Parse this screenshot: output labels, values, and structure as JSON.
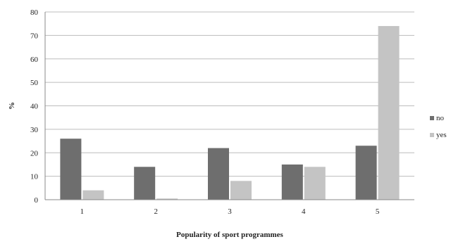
{
  "chart_data": {
    "type": "bar",
    "title": "",
    "xlabel": "Popularity of sport programmes",
    "ylabel": "%",
    "categories": [
      "1",
      "2",
      "3",
      "4",
      "5"
    ],
    "series": [
      {
        "name": "no",
        "values": [
          26,
          14,
          22,
          15,
          23
        ],
        "color": "#6e6e6e"
      },
      {
        "name": "yes",
        "values": [
          4,
          0.5,
          8,
          14,
          74
        ],
        "color": "#c4c4c4"
      }
    ],
    "ylim": [
      0,
      80
    ],
    "yticks": [
      "0",
      "10",
      "20",
      "30",
      "40",
      "50",
      "60",
      "70",
      "80"
    ],
    "grid": true,
    "legend_position": "right"
  }
}
